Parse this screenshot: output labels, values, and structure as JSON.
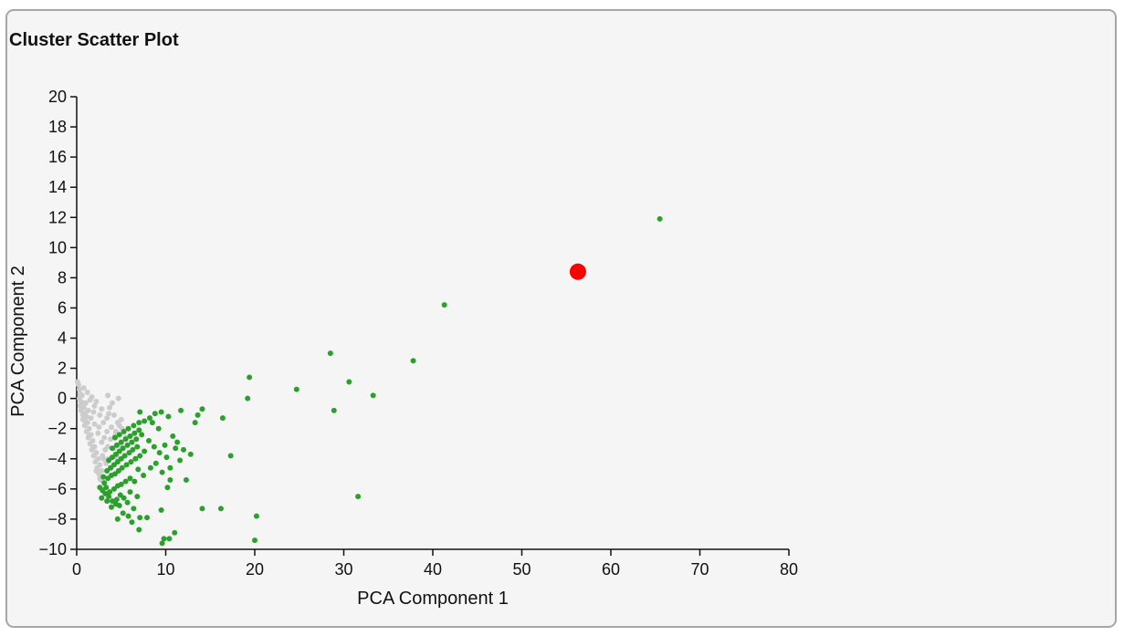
{
  "panel": {
    "title": "Cluster Scatter Plot"
  },
  "chart_data": {
    "type": "scatter",
    "title": "Cluster Scatter Plot",
    "xlabel": "PCA Component 1",
    "ylabel": "PCA Component 2",
    "xlim": [
      0,
      80
    ],
    "ylim": [
      -10,
      20
    ],
    "xticks": [
      0,
      10,
      20,
      30,
      40,
      50,
      60,
      70,
      80
    ],
    "yticks": [
      -10,
      -8,
      -6,
      -4,
      -2,
      0,
      2,
      4,
      6,
      8,
      10,
      12,
      14,
      16,
      18,
      20
    ],
    "xtick_labels": [
      "0",
      "10",
      "20",
      "30",
      "40",
      "50",
      "60",
      "70",
      "80"
    ],
    "ytick_labels": [
      "−10",
      "−8",
      "−6",
      "−4",
      "−2",
      "0",
      "2",
      "4",
      "6",
      "8",
      "10",
      "12",
      "14",
      "16",
      "18",
      "20"
    ],
    "grid": false,
    "series": [
      {
        "color": "#cccccc",
        "points": [
          [
            0.1,
            1.1
          ],
          [
            0.2,
            0.9
          ],
          [
            0.3,
            0.6
          ],
          [
            0.4,
            0.3
          ],
          [
            0.3,
            0.0
          ],
          [
            0.5,
            -0.2
          ],
          [
            0.6,
            -0.4
          ],
          [
            0.8,
            -0.6
          ],
          [
            0.5,
            -0.8
          ],
          [
            0.9,
            -1.0
          ],
          [
            1.1,
            -1.2
          ],
          [
            0.7,
            -1.4
          ],
          [
            1.2,
            -1.6
          ],
          [
            0.9,
            -1.8
          ],
          [
            1.4,
            -2.0
          ],
          [
            1.1,
            -2.2
          ],
          [
            1.6,
            -2.4
          ],
          [
            1.3,
            -2.6
          ],
          [
            1.8,
            -2.8
          ],
          [
            1.5,
            -3.0
          ],
          [
            2.0,
            -3.2
          ],
          [
            1.7,
            -3.4
          ],
          [
            2.2,
            -3.6
          ],
          [
            1.9,
            -3.8
          ],
          [
            2.4,
            -4.0
          ],
          [
            2.1,
            -4.2
          ],
          [
            2.6,
            -4.4
          ],
          [
            2.3,
            -4.6
          ],
          [
            2.8,
            -4.8
          ],
          [
            2.5,
            -5.0
          ],
          [
            3.0,
            -5.2
          ],
          [
            2.7,
            -5.4
          ],
          [
            1.0,
            -0.3
          ],
          [
            1.3,
            -0.8
          ],
          [
            1.6,
            -1.3
          ],
          [
            2.0,
            -1.7
          ],
          [
            2.4,
            -2.3
          ],
          [
            2.8,
            -2.9
          ],
          [
            3.2,
            -3.4
          ],
          [
            3.6,
            -4.0
          ],
          [
            1.5,
            -0.1
          ],
          [
            2.0,
            -0.5
          ],
          [
            2.6,
            -1.1
          ],
          [
            3.0,
            -1.6
          ],
          [
            3.4,
            -2.2
          ],
          [
            3.8,
            -2.7
          ],
          [
            4.2,
            -3.3
          ],
          [
            4.5,
            -3.9
          ],
          [
            2.2,
            -0.2
          ],
          [
            2.8,
            -0.7
          ],
          [
            3.4,
            -1.3
          ],
          [
            3.9,
            -1.9
          ],
          [
            4.3,
            -2.5
          ],
          [
            4.8,
            -3.1
          ],
          [
            3.5,
            0.2
          ],
          [
            4.7,
            0.0
          ],
          [
            3.7,
            -0.6
          ],
          [
            4.2,
            -1.1
          ],
          [
            4.6,
            -1.6
          ],
          [
            5.1,
            -2.0
          ],
          [
            5.5,
            -2.6
          ],
          [
            4.8,
            -1.8
          ],
          [
            0.8,
            0.7
          ],
          [
            1.2,
            0.4
          ],
          [
            1.7,
            0.1
          ],
          [
            0.6,
            0.2
          ],
          [
            1.9,
            -0.9
          ],
          [
            2.5,
            -1.9
          ],
          [
            3.1,
            -2.6
          ],
          [
            3.5,
            -3.2
          ],
          [
            3.9,
            -4.6
          ],
          [
            3.3,
            -4.3
          ],
          [
            2.9,
            -3.8
          ],
          [
            0.4,
            -0.5
          ],
          [
            0.7,
            -1.1
          ],
          [
            1.0,
            -1.5
          ],
          [
            1.4,
            -2.5
          ],
          [
            1.8,
            -3.3
          ],
          [
            2.2,
            -4.8
          ],
          [
            2.6,
            -5.3
          ],
          [
            3.0,
            -4.0
          ],
          [
            4.0,
            -0.3
          ],
          [
            5.0,
            -1.4
          ],
          [
            4.4,
            -2.2
          ],
          [
            3.6,
            -1.0
          ]
        ]
      },
      {
        "color": "#2ca02c",
        "points": [
          [
            65.5,
            11.9
          ],
          [
            41.3,
            6.2
          ],
          [
            37.8,
            2.5
          ],
          [
            28.5,
            3.0
          ],
          [
            30.6,
            1.1
          ],
          [
            33.3,
            0.2
          ],
          [
            24.7,
            0.6
          ],
          [
            19.4,
            1.4
          ],
          [
            19.2,
            0.0
          ],
          [
            28.9,
            -0.8
          ],
          [
            31.6,
            -6.5
          ],
          [
            20.2,
            -7.8
          ],
          [
            20.0,
            -9.4
          ],
          [
            16.2,
            -7.3
          ],
          [
            14.1,
            -7.3
          ],
          [
            17.3,
            -3.8
          ],
          [
            16.4,
            -1.3
          ],
          [
            14.1,
            -0.7
          ],
          [
            13.6,
            -1.1
          ],
          [
            13.3,
            -1.6
          ],
          [
            11.7,
            -0.8
          ],
          [
            12.8,
            -3.7
          ],
          [
            12.3,
            -5.4
          ],
          [
            11.0,
            -8.9
          ],
          [
            10.4,
            -9.3
          ],
          [
            9.6,
            -9.6
          ],
          [
            9.8,
            -9.3
          ],
          [
            10.2,
            -5.9
          ],
          [
            10.5,
            -5.4
          ],
          [
            9.5,
            -7.4
          ],
          [
            7.9,
            -7.9
          ],
          [
            7.1,
            -7.9
          ],
          [
            7.0,
            -8.7
          ],
          [
            6.2,
            -8.2
          ],
          [
            6.4,
            -7.3
          ],
          [
            5.7,
            -6.9
          ],
          [
            5.2,
            -7.6
          ],
          [
            4.8,
            -7.1
          ],
          [
            4.4,
            -7.0
          ],
          [
            4.0,
            -6.8
          ],
          [
            3.6,
            -6.5
          ],
          [
            3.2,
            -6.3
          ],
          [
            2.9,
            -6.1
          ],
          [
            3.3,
            -5.9
          ],
          [
            3.7,
            -6.2
          ],
          [
            4.2,
            -6.0
          ],
          [
            4.6,
            -5.8
          ],
          [
            5.0,
            -5.7
          ],
          [
            5.5,
            -5.5
          ],
          [
            6.0,
            -5.3
          ],
          [
            6.5,
            -5.5
          ],
          [
            3.1,
            -5.6
          ],
          [
            3.5,
            -5.3
          ],
          [
            3.9,
            -5.1
          ],
          [
            4.3,
            -5.0
          ],
          [
            4.7,
            -4.8
          ],
          [
            5.1,
            -4.6
          ],
          [
            5.6,
            -4.4
          ],
          [
            6.1,
            -4.2
          ],
          [
            6.6,
            -4.0
          ],
          [
            7.1,
            -3.8
          ],
          [
            3.4,
            -4.8
          ],
          [
            3.8,
            -4.6
          ],
          [
            4.2,
            -4.4
          ],
          [
            4.6,
            -4.2
          ],
          [
            5.0,
            -4.0
          ],
          [
            5.4,
            -3.8
          ],
          [
            5.9,
            -3.6
          ],
          [
            6.3,
            -3.4
          ],
          [
            6.8,
            -3.2
          ],
          [
            3.6,
            -4.1
          ],
          [
            4.0,
            -3.9
          ],
          [
            4.4,
            -3.7
          ],
          [
            4.8,
            -3.5
          ],
          [
            5.2,
            -3.3
          ],
          [
            5.7,
            -3.1
          ],
          [
            6.2,
            -2.9
          ],
          [
            6.7,
            -2.7
          ],
          [
            4.0,
            -3.3
          ],
          [
            4.5,
            -3.1
          ],
          [
            5.0,
            -2.9
          ],
          [
            5.5,
            -2.7
          ],
          [
            6.0,
            -2.5
          ],
          [
            6.5,
            -2.3
          ],
          [
            7.0,
            -2.1
          ],
          [
            4.3,
            -2.6
          ],
          [
            4.8,
            -2.4
          ],
          [
            5.3,
            -2.2
          ],
          [
            5.8,
            -2.0
          ],
          [
            6.4,
            -1.8
          ],
          [
            7.0,
            -1.6
          ],
          [
            7.6,
            -1.5
          ],
          [
            8.2,
            -1.3
          ],
          [
            8.8,
            -1.0
          ],
          [
            9.5,
            -0.9
          ],
          [
            7.1,
            -0.9
          ],
          [
            8.5,
            -1.6
          ],
          [
            9.2,
            -2.0
          ],
          [
            10.3,
            -1.2
          ],
          [
            10.8,
            -2.5
          ],
          [
            11.1,
            -3.3
          ],
          [
            10.1,
            -3.9
          ],
          [
            9.3,
            -3.6
          ],
          [
            8.7,
            -3.2
          ],
          [
            8.1,
            -2.8
          ],
          [
            7.6,
            -3.5
          ],
          [
            7.3,
            -2.4
          ],
          [
            6.9,
            -4.7
          ],
          [
            7.5,
            -5.1
          ],
          [
            8.3,
            -4.6
          ],
          [
            8.9,
            -4.3
          ],
          [
            9.6,
            -4.9
          ],
          [
            10.5,
            -4.6
          ],
          [
            9.9,
            -3.1
          ],
          [
            11.6,
            -4.1
          ],
          [
            11.3,
            -2.9
          ],
          [
            12.0,
            -3.4
          ],
          [
            6.0,
            -6.2
          ],
          [
            5.3,
            -6.6
          ],
          [
            4.9,
            -6.4
          ],
          [
            3.9,
            -7.2
          ],
          [
            3.4,
            -6.8
          ],
          [
            2.8,
            -6.6
          ],
          [
            2.6,
            -5.9
          ],
          [
            3.0,
            -5.2
          ],
          [
            4.5,
            -6.7
          ],
          [
            6.8,
            -6.5
          ],
          [
            5.8,
            -7.8
          ],
          [
            4.6,
            -8.0
          ]
        ]
      }
    ],
    "centroid": {
      "x": 56.3,
      "y": 8.4,
      "color": "#ff0000"
    }
  }
}
